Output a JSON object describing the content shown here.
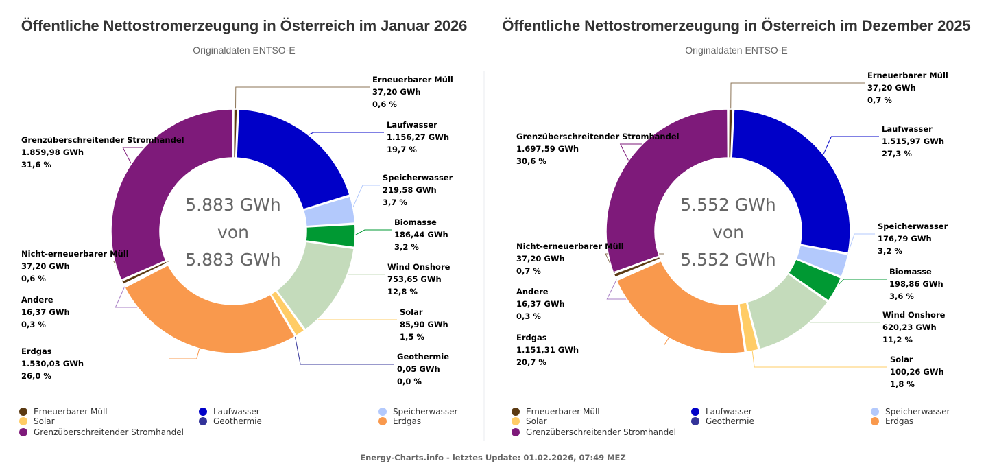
{
  "footer": "Energy-Charts.info - letztes Update: 01.02.2026, 07:49 MEZ",
  "chart_data": [
    {
      "type": "pie",
      "variant": "donut",
      "title": "Öffentliche Nettostromerzeugung in Österreich im Januar 2026",
      "subtitle": "Originaldaten ENTSO-E",
      "unit": "GWh",
      "center": {
        "line1": "5.883 GWh",
        "line2": "von",
        "line3": "5.883 GWh"
      },
      "slices": [
        {
          "name": "Erneuerbarer Müll",
          "value": 37.2,
          "value_label": "37,20 GWh",
          "percent_label": "0,6 %",
          "color": "#5b3a12"
        },
        {
          "name": "Laufwasser",
          "value": 1156.27,
          "value_label": "1.156,27 GWh",
          "percent_label": "19,7 %",
          "color": "#0000c8"
        },
        {
          "name": "Speicherwasser",
          "value": 219.58,
          "value_label": "219,58 GWh",
          "percent_label": "3,7 %",
          "color": "#b3c9fc"
        },
        {
          "name": "Biomasse",
          "value": 186.44,
          "value_label": "186,44 GWh",
          "percent_label": "3,2 %",
          "color": "#009933"
        },
        {
          "name": "Wind Onshore",
          "value": 753.65,
          "value_label": "753,65 GWh",
          "percent_label": "12,8 %",
          "color": "#c4dbbb"
        },
        {
          "name": "Solar",
          "value": 85.9,
          "value_label": "85,90 GWh",
          "percent_label": "1,5 %",
          "color": "#ffcc66"
        },
        {
          "name": "Geothermie",
          "value": 0.05,
          "value_label": "0,05 GWh",
          "percent_label": "0,0 %",
          "color": "#333399"
        },
        {
          "name": "Erdgas",
          "value": 1530.03,
          "value_label": "1.530,03 GWh",
          "percent_label": "26,0 %",
          "color": "#f9994d"
        },
        {
          "name": "Andere",
          "value": 16.37,
          "value_label": "16,37 GWh",
          "percent_label": "0,3 %",
          "color": "#a77dc4"
        },
        {
          "name": "Nicht-erneuerbarer Müll",
          "value": 37.2,
          "value_label": "37,20 GWh",
          "percent_label": "0,6 %",
          "color": "#5b3a12"
        },
        {
          "name": "Grenzüberschreitender Stromhandel",
          "value": 1859.98,
          "value_label": "1.859,98 GWh",
          "percent_label": "31,6 %",
          "color": "#7e1a7a"
        }
      ],
      "legend": [
        {
          "name": "Erneuerbarer Müll",
          "color": "#5b3a12"
        },
        {
          "name": "Laufwasser",
          "color": "#0000c8"
        },
        {
          "name": "Speicherwasser",
          "color": "#b3c9fc"
        },
        {
          "name": "Solar",
          "color": "#ffcc66"
        },
        {
          "name": "Geothermie",
          "color": "#333399"
        },
        {
          "name": "Erdgas",
          "color": "#f9994d"
        },
        {
          "name": "Grenzüberschreitender Stromhandel",
          "color": "#7e1a7a"
        }
      ],
      "legend_position": "bottom"
    },
    {
      "type": "pie",
      "variant": "donut",
      "title": "Öffentliche Nettostromerzeugung in Österreich im Dezember 2025",
      "subtitle": "Originaldaten ENTSO-E",
      "unit": "GWh",
      "center": {
        "line1": "5.552 GWh",
        "line2": "von",
        "line3": "5.552 GWh"
      },
      "slices": [
        {
          "name": "Erneuerbarer Müll",
          "value": 37.2,
          "value_label": "37,20 GWh",
          "percent_label": "0,7 %",
          "color": "#5b3a12"
        },
        {
          "name": "Laufwasser",
          "value": 1515.97,
          "value_label": "1.515,97 GWh",
          "percent_label": "27,3 %",
          "color": "#0000c8"
        },
        {
          "name": "Speicherwasser",
          "value": 176.79,
          "value_label": "176,79 GWh",
          "percent_label": "3,2 %",
          "color": "#b3c9fc"
        },
        {
          "name": "Biomasse",
          "value": 198.86,
          "value_label": "198,86 GWh",
          "percent_label": "3,6 %",
          "color": "#009933"
        },
        {
          "name": "Wind Onshore",
          "value": 620.23,
          "value_label": "620,23 GWh",
          "percent_label": "11,2 %",
          "color": "#c4dbbb"
        },
        {
          "name": "Solar",
          "value": 100.26,
          "value_label": "100,26 GWh",
          "percent_label": "1,8 %",
          "color": "#ffcc66"
        },
        {
          "name": "Erdgas",
          "value": 1151.31,
          "value_label": "1.151,31 GWh",
          "percent_label": "20,7 %",
          "color": "#f9994d"
        },
        {
          "name": "Andere",
          "value": 16.37,
          "value_label": "16,37 GWh",
          "percent_label": "0,3 %",
          "color": "#a77dc4"
        },
        {
          "name": "Nicht-erneuerbarer Müll",
          "value": 37.2,
          "value_label": "37,20 GWh",
          "percent_label": "0,7 %",
          "color": "#5b3a12"
        },
        {
          "name": "Grenzüberschreitender Stromhandel",
          "value": 1697.59,
          "value_label": "1.697,59 GWh",
          "percent_label": "30,6 %",
          "color": "#7e1a7a"
        }
      ],
      "legend": [
        {
          "name": "Erneuerbarer Müll",
          "color": "#5b3a12"
        },
        {
          "name": "Laufwasser",
          "color": "#0000c8"
        },
        {
          "name": "Speicherwasser",
          "color": "#b3c9fc"
        },
        {
          "name": "Solar",
          "color": "#ffcc66"
        },
        {
          "name": "Geothermie",
          "color": "#333399"
        },
        {
          "name": "Erdgas",
          "color": "#f9994d"
        },
        {
          "name": "Grenzüberschreitender Stromhandel",
          "color": "#7e1a7a"
        }
      ],
      "legend_position": "bottom"
    }
  ]
}
